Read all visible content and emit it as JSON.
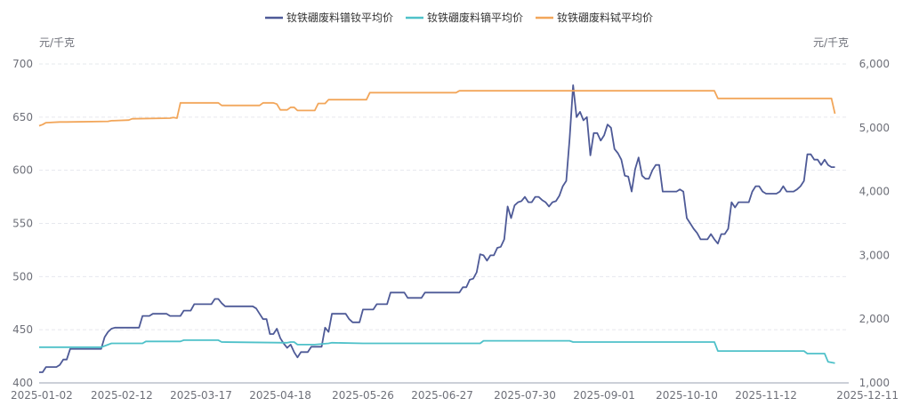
{
  "chart_data": {
    "type": "line",
    "title": "",
    "legend_position": "top-center",
    "left_unit": "元/千克",
    "right_unit": "元/千克",
    "left_axis": {
      "min": 400,
      "max": 700,
      "ticks": [
        "400",
        "450",
        "500",
        "550",
        "600",
        "650",
        "700"
      ]
    },
    "right_axis": {
      "min": 1000,
      "max": 6000,
      "ticks": [
        "1,000",
        "2,000",
        "3,000",
        "4,000",
        "5,000",
        "6,000"
      ]
    },
    "x_tick_labels": [
      "2025-01-02",
      "2025-02-12",
      "2025-03-17",
      "2025-04-18",
      "2025-05-26",
      "2025-06-27",
      "2025-07-30",
      "2025-09-01",
      "2025-10-10",
      "2025-11-12",
      "2025-12-11"
    ],
    "x_range": [
      0,
      235
    ],
    "x_tick_positions": [
      0,
      24,
      47,
      70,
      94,
      117,
      141,
      164,
      188,
      211,
      235
    ],
    "colors": {
      "pr_nd": "#4e5a97",
      "dy": "#4fc1c9",
      "tb": "#f2a65a",
      "grid": "#e6e8ee"
    },
    "series": [
      {
        "name": "钕铁硼废料镨钕平均价",
        "axis": "left",
        "color": "#4e5a97",
        "points": [
          [
            0,
            410
          ],
          [
            1,
            410
          ],
          [
            2,
            415
          ],
          [
            5,
            415
          ],
          [
            6,
            417
          ],
          [
            7,
            422
          ],
          [
            8,
            422
          ],
          [
            9,
            432
          ],
          [
            18,
            432
          ],
          [
            19,
            443
          ],
          [
            20,
            448
          ],
          [
            21,
            451
          ],
          [
            22,
            452
          ],
          [
            29,
            452
          ],
          [
            30,
            463
          ],
          [
            32,
            463
          ],
          [
            33,
            465
          ],
          [
            37,
            465
          ],
          [
            38,
            463
          ],
          [
            41,
            463
          ],
          [
            42,
            468
          ],
          [
            44,
            468
          ],
          [
            45,
            474
          ],
          [
            50,
            474
          ],
          [
            51,
            479
          ],
          [
            52,
            479
          ],
          [
            53,
            475
          ],
          [
            54,
            472
          ],
          [
            62,
            472
          ],
          [
            63,
            470
          ],
          [
            64,
            465
          ],
          [
            65,
            460
          ],
          [
            66,
            460
          ],
          [
            67,
            446
          ],
          [
            68,
            446
          ],
          [
            69,
            451
          ],
          [
            70,
            442
          ],
          [
            71,
            437
          ],
          [
            72,
            433
          ],
          [
            73,
            436
          ],
          [
            74,
            429
          ],
          [
            75,
            424
          ],
          [
            76,
            429
          ],
          [
            77,
            429
          ],
          [
            78,
            429
          ],
          [
            79,
            434
          ],
          [
            80,
            434
          ],
          [
            81,
            434
          ],
          [
            82,
            434
          ],
          [
            83,
            452
          ],
          [
            84,
            448
          ],
          [
            85,
            465
          ],
          [
            89,
            465
          ],
          [
            90,
            460
          ],
          [
            91,
            457
          ],
          [
            93,
            457
          ],
          [
            94,
            469
          ],
          [
            97,
            469
          ],
          [
            98,
            474
          ],
          [
            101,
            474
          ],
          [
            102,
            485
          ],
          [
            106,
            485
          ],
          [
            107,
            480
          ],
          [
            111,
            480
          ],
          [
            112,
            485
          ],
          [
            122,
            485
          ],
          [
            123,
            490
          ],
          [
            124,
            490
          ],
          [
            125,
            497
          ],
          [
            126,
            498
          ],
          [
            127,
            504
          ],
          [
            128,
            521
          ],
          [
            129,
            520
          ],
          [
            130,
            515
          ],
          [
            131,
            520
          ],
          [
            132,
            520
          ],
          [
            133,
            527
          ],
          [
            134,
            528
          ],
          [
            135,
            535
          ],
          [
            136,
            566
          ],
          [
            137,
            555
          ],
          [
            138,
            567
          ],
          [
            139,
            570
          ],
          [
            140,
            571
          ],
          [
            141,
            575
          ],
          [
            142,
            570
          ],
          [
            143,
            570
          ],
          [
            144,
            575
          ],
          [
            145,
            575
          ],
          [
            146,
            572
          ],
          [
            147,
            570
          ],
          [
            148,
            566
          ],
          [
            149,
            570
          ],
          [
            150,
            571
          ],
          [
            151,
            576
          ],
          [
            152,
            585
          ],
          [
            153,
            590
          ],
          [
            154,
            630
          ],
          [
            155,
            680
          ],
          [
            156,
            650
          ],
          [
            157,
            655
          ],
          [
            158,
            647
          ],
          [
            159,
            650
          ],
          [
            160,
            614
          ],
          [
            161,
            635
          ],
          [
            162,
            635
          ],
          [
            163,
            628
          ],
          [
            164,
            633
          ],
          [
            165,
            643
          ],
          [
            166,
            640
          ],
          [
            167,
            620
          ],
          [
            168,
            616
          ],
          [
            169,
            610
          ],
          [
            170,
            595
          ],
          [
            171,
            594
          ],
          [
            172,
            580
          ],
          [
            173,
            601
          ],
          [
            174,
            612
          ],
          [
            175,
            595
          ],
          [
            176,
            592
          ],
          [
            177,
            592
          ],
          [
            178,
            600
          ],
          [
            179,
            605
          ],
          [
            180,
            605
          ],
          [
            181,
            580
          ],
          [
            185,
            580
          ],
          [
            186,
            582
          ],
          [
            187,
            580
          ],
          [
            188,
            555
          ],
          [
            189,
            550
          ],
          [
            190,
            545
          ],
          [
            191,
            541
          ],
          [
            192,
            535
          ],
          [
            194,
            535
          ],
          [
            195,
            540
          ],
          [
            196,
            535
          ],
          [
            197,
            531
          ],
          [
            198,
            540
          ],
          [
            199,
            540
          ],
          [
            200,
            545
          ],
          [
            201,
            570
          ],
          [
            202,
            565
          ],
          [
            203,
            570
          ],
          [
            206,
            570
          ],
          [
            207,
            580
          ],
          [
            208,
            585
          ],
          [
            209,
            585
          ],
          [
            210,
            580
          ],
          [
            211,
            578
          ],
          [
            214,
            578
          ],
          [
            215,
            580
          ],
          [
            216,
            585
          ],
          [
            217,
            580
          ],
          [
            219,
            580
          ],
          [
            220,
            582
          ],
          [
            221,
            585
          ],
          [
            222,
            590
          ],
          [
            223,
            615
          ],
          [
            224,
            615
          ],
          [
            225,
            610
          ],
          [
            226,
            610
          ],
          [
            227,
            605
          ],
          [
            228,
            610
          ],
          [
            229,
            605
          ],
          [
            230,
            603
          ],
          [
            231,
            603
          ]
        ]
      },
      {
        "name": "钕铁硼废料镝平均价",
        "axis": "right",
        "color": "#4fc1c9",
        "points": [
          [
            0,
            1560
          ],
          [
            18,
            1560
          ],
          [
            19,
            1580
          ],
          [
            21,
            1620
          ],
          [
            30,
            1620
          ],
          [
            31,
            1650
          ],
          [
            41,
            1650
          ],
          [
            42,
            1670
          ],
          [
            52,
            1670
          ],
          [
            53,
            1640
          ],
          [
            72,
            1630
          ],
          [
            73,
            1640
          ],
          [
            74,
            1640
          ],
          [
            75,
            1600
          ],
          [
            80,
            1600
          ],
          [
            84,
            1620
          ],
          [
            85,
            1630
          ],
          [
            94,
            1620
          ],
          [
            128,
            1620
          ],
          [
            129,
            1660
          ],
          [
            154,
            1660
          ],
          [
            155,
            1640
          ],
          [
            196,
            1640
          ],
          [
            197,
            1500
          ],
          [
            222,
            1500
          ],
          [
            223,
            1460
          ],
          [
            228,
            1460
          ],
          [
            229,
            1330
          ],
          [
            231,
            1310
          ]
        ]
      },
      {
        "name": "钕铁硼废料铽平均价",
        "axis": "right",
        "color": "#f2a65a",
        "points": [
          [
            0,
            5030
          ],
          [
            1,
            5050
          ],
          [
            2,
            5080
          ],
          [
            6,
            5090
          ],
          [
            8,
            5090
          ],
          [
            20,
            5100
          ],
          [
            21,
            5110
          ],
          [
            26,
            5120
          ],
          [
            27,
            5140
          ],
          [
            38,
            5150
          ],
          [
            39,
            5160
          ],
          [
            40,
            5150
          ],
          [
            41,
            5390
          ],
          [
            52,
            5390
          ],
          [
            53,
            5350
          ],
          [
            64,
            5350
          ],
          [
            65,
            5390
          ],
          [
            68,
            5390
          ],
          [
            69,
            5370
          ],
          [
            70,
            5280
          ],
          [
            72,
            5280
          ],
          [
            73,
            5320
          ],
          [
            74,
            5320
          ],
          [
            75,
            5270
          ],
          [
            80,
            5270
          ],
          [
            81,
            5380
          ],
          [
            83,
            5380
          ],
          [
            84,
            5440
          ],
          [
            95,
            5440
          ],
          [
            96,
            5550
          ],
          [
            121,
            5550
          ],
          [
            122,
            5580
          ],
          [
            196,
            5580
          ],
          [
            197,
            5460
          ],
          [
            230,
            5460
          ],
          [
            231,
            5220
          ]
        ]
      }
    ]
  }
}
